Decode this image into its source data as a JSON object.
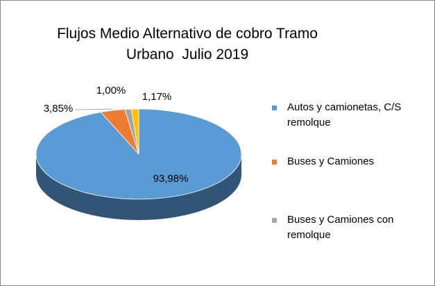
{
  "chart_data": {
    "type": "pie",
    "title": "Flujos Medio Alternativo de cobro Tramo Urbano  Julio 2019",
    "categories": [
      "Autos y camionetas, C/S remolque",
      "Buses y Camiones",
      "Buses y Camiones con remolque",
      null
    ],
    "values": [
      93.98,
      3.85,
      1.0,
      1.17
    ],
    "value_labels": [
      "93,98%",
      "3,85%",
      "1,00%",
      "1,17%"
    ],
    "colors": [
      "#5b9bd5",
      "#ed7d31",
      "#a5a5a5",
      "#ffc000"
    ],
    "legend": "right"
  }
}
